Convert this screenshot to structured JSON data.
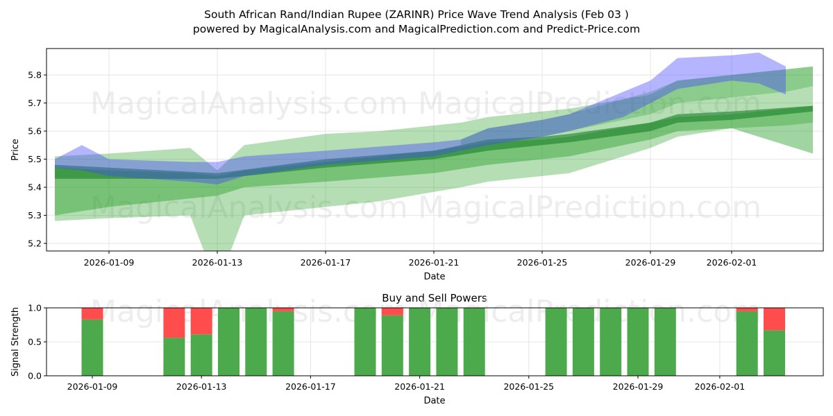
{
  "chart_data": [
    {
      "type": "area",
      "title": "South African Rand/Indian Rupee (ZARINR) Price Wave Trend Analysis (Feb 03 )",
      "subtitle": "powered by MagicalAnalysis.com and MagicalPrediction.com and Predict-Price.com",
      "xlabel": "Date",
      "ylabel": "Price",
      "ylim": [
        5.173,
        5.894
      ],
      "xlim": [
        "2026-01-06.7",
        "2026-02-04.4"
      ],
      "grid": true,
      "yticks": [
        "5.2",
        "5.3",
        "5.4",
        "5.5",
        "5.6",
        "5.7",
        "5.8"
      ],
      "xticks": [
        "2026-01-09",
        "2026-01-13",
        "2026-01-17",
        "2026-01-21",
        "2026-01-25",
        "2026-01-29",
        "2026-02-01"
      ],
      "bands": [
        {
          "name": "outer-green",
          "color": "#2ca02c",
          "opacity": 0.35,
          "dates": [
            "2026-01-07",
            "2026-01-09",
            "2026-01-12",
            "2026-01-13",
            "2026-01-14",
            "2026-01-17",
            "2026-01-19",
            "2026-01-22",
            "2026-01-23",
            "2026-01-25",
            "2026-01-26",
            "2026-01-29",
            "2026-01-30",
            "2026-02-01",
            "2026-02-03",
            "2026-02-04"
          ],
          "upper": [
            5.51,
            5.52,
            5.54,
            5.46,
            5.55,
            5.59,
            5.6,
            5.63,
            5.65,
            5.67,
            5.68,
            5.73,
            5.78,
            5.8,
            5.82,
            5.83
          ],
          "lower": [
            5.28,
            5.29,
            5.3,
            5.05,
            5.3,
            5.33,
            5.35,
            5.4,
            5.42,
            5.44,
            5.45,
            5.54,
            5.58,
            5.61,
            5.62,
            5.63
          ]
        },
        {
          "name": "mid-green",
          "color": "#2ca02c",
          "opacity": 0.45,
          "dates": [
            "2026-01-07",
            "2026-01-09",
            "2026-01-12",
            "2026-01-13",
            "2026-01-14",
            "2026-01-17",
            "2026-01-21",
            "2026-01-23",
            "2026-01-25",
            "2026-01-26",
            "2026-01-29",
            "2026-01-30",
            "2026-02-01",
            "2026-02-04"
          ],
          "upper": [
            5.47,
            5.46,
            5.45,
            5.44,
            5.46,
            5.49,
            5.53,
            5.56,
            5.57,
            5.58,
            5.63,
            5.65,
            5.66,
            5.69
          ],
          "lower": [
            5.3,
            5.33,
            5.36,
            5.37,
            5.4,
            5.42,
            5.45,
            5.48,
            5.5,
            5.51,
            5.57,
            5.6,
            5.61,
            5.52
          ]
        },
        {
          "name": "core-green",
          "color": "#1a7f2a",
          "opacity": 0.6,
          "dates": [
            "2026-01-07",
            "2026-01-09",
            "2026-01-13",
            "2026-01-17",
            "2026-01-21",
            "2026-01-23",
            "2026-01-25",
            "2026-01-26",
            "2026-01-29",
            "2026-01-30",
            "2026-02-01",
            "2026-02-04"
          ],
          "upper": [
            5.48,
            5.47,
            5.45,
            5.5,
            5.53,
            5.57,
            5.58,
            5.59,
            5.63,
            5.66,
            5.67,
            5.69
          ],
          "lower": [
            5.43,
            5.43,
            5.43,
            5.47,
            5.5,
            5.53,
            5.55,
            5.56,
            5.6,
            5.63,
            5.64,
            5.67
          ]
        },
        {
          "name": "upper-green",
          "color": "#2ca02c",
          "opacity": 0.3,
          "dates": [
            "2026-01-22",
            "2026-01-23",
            "2026-01-25",
            "2026-01-26",
            "2026-01-29",
            "2026-01-30",
            "2026-02-01",
            "2026-02-03",
            "2026-02-04"
          ],
          "upper": [
            5.57,
            5.61,
            5.64,
            5.66,
            5.74,
            5.78,
            5.8,
            5.82,
            5.83
          ],
          "lower": [
            5.55,
            5.56,
            5.58,
            5.6,
            5.66,
            5.7,
            5.72,
            5.74,
            5.76
          ]
        },
        {
          "name": "blue-wave",
          "color": "#4444ff",
          "opacity": 0.4,
          "dates": [
            "2026-01-07",
            "2026-01-08",
            "2026-01-09",
            "2026-01-12",
            "2026-01-13",
            "2026-01-14",
            "2026-01-17",
            "2026-01-21",
            "2026-01-22",
            "2026-01-23",
            "2026-01-25",
            "2026-01-26",
            "2026-01-28",
            "2026-01-29",
            "2026-01-30",
            "2026-02-01",
            "2026-02-02",
            "2026-02-03"
          ],
          "upper": [
            5.5,
            5.55,
            5.5,
            5.49,
            5.49,
            5.51,
            5.53,
            5.56,
            5.57,
            5.61,
            5.64,
            5.66,
            5.74,
            5.78,
            5.86,
            5.87,
            5.88,
            5.83
          ],
          "lower": [
            5.47,
            5.46,
            5.44,
            5.42,
            5.41,
            5.44,
            5.48,
            5.51,
            5.53,
            5.55,
            5.58,
            5.6,
            5.65,
            5.7,
            5.75,
            5.78,
            5.77,
            5.73
          ]
        }
      ]
    },
    {
      "type": "bar",
      "title": "Buy and Sell Powers",
      "xlabel": "Date",
      "ylabel": "Signal Strength",
      "ylim": [
        0,
        1
      ],
      "yticks": [
        "0.0",
        "0.5",
        "1.0"
      ],
      "xticks": [
        "2026-01-09",
        "2026-01-13",
        "2026-01-17",
        "2026-01-21",
        "2026-01-25",
        "2026-01-29",
        "2026-02-01"
      ],
      "dates": [
        "2026-01-09",
        "2026-01-12",
        "2026-01-13",
        "2026-01-14",
        "2026-01-15",
        "2026-01-16",
        "2026-01-19",
        "2026-01-20",
        "2026-01-21",
        "2026-01-22",
        "2026-01-23",
        "2026-01-26",
        "2026-01-27",
        "2026-01-28",
        "2026-01-29",
        "2026-01-30",
        "2026-02-02",
        "2026-02-03"
      ],
      "series": [
        {
          "name": "Buy",
          "color": "#4caa4c",
          "values": [
            0.83,
            0.56,
            0.61,
            1,
            1,
            0.95,
            1,
            0.89,
            1,
            1,
            1,
            1,
            1,
            1,
            1,
            1,
            0.95,
            0.67
          ]
        },
        {
          "name": "Sell",
          "color": "#ff4c4c",
          "values": [
            0.17,
            0.44,
            0.39,
            0,
            0,
            0.05,
            0,
            0.11,
            0,
            0,
            0,
            0,
            0,
            0,
            0,
            0,
            0.05,
            0.33
          ]
        }
      ]
    }
  ],
  "watermarks": [
    "MagicalAnalysis.com",
    "MagicalPrediction.com"
  ]
}
